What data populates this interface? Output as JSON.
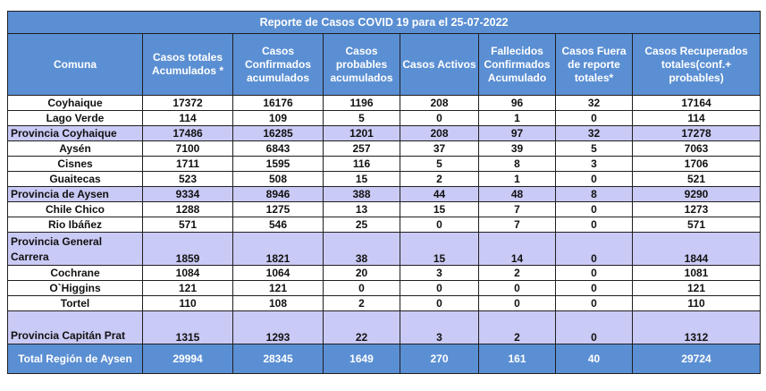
{
  "title": "Reporte de Casos COVID 19  para el  25-07-2022",
  "headers": [
    "Comuna",
    "Casos totales Acumulados *",
    "Casos Confirmados acumulados",
    "Casos probables acumulados",
    "Casos Activos",
    "Fallecidos Confirmados Acumulado",
    "Casos Fuera de reporte totales*",
    "Casos Recuperados totales(conf.+ probables)"
  ],
  "rows": [
    {
      "type": "comuna",
      "cells": [
        "Coyhaique",
        "17372",
        "16176",
        "1196",
        "208",
        "96",
        "32",
        "17164"
      ]
    },
    {
      "type": "comuna",
      "cells": [
        "Lago Verde",
        "114",
        "109",
        "5",
        "0",
        "1",
        "0",
        "114"
      ]
    },
    {
      "type": "provincia",
      "cells": [
        "Provincia Coyhaique",
        "17486",
        "16285",
        "1201",
        "208",
        "97",
        "32",
        "17278"
      ]
    },
    {
      "type": "comuna",
      "cells": [
        "Aysén",
        "7100",
        "6843",
        "257",
        "37",
        "39",
        "5",
        "7063"
      ]
    },
    {
      "type": "comuna",
      "cells": [
        "Cisnes",
        "1711",
        "1595",
        "116",
        "5",
        "8",
        "3",
        "1706"
      ]
    },
    {
      "type": "comuna",
      "cells": [
        "Guaitecas",
        "523",
        "508",
        "15",
        "2",
        "1",
        "0",
        "521"
      ]
    },
    {
      "type": "provincia",
      "cells": [
        "Provincia de Aysen",
        "9334",
        "8946",
        "388",
        "44",
        "48",
        "8",
        "9290"
      ]
    },
    {
      "type": "comuna",
      "cells": [
        "Chile Chico",
        "1288",
        "1275",
        "13",
        "15",
        "7",
        "0",
        "1273"
      ]
    },
    {
      "type": "comuna",
      "cells": [
        "Rio Ibáñez",
        "571",
        "546",
        "25",
        "0",
        "7",
        "0",
        "571"
      ]
    },
    {
      "type": "provincia-tall",
      "cells": [
        "Provincia General Carrera",
        "1859",
        "1821",
        "38",
        "15",
        "14",
        "0",
        "1844"
      ]
    },
    {
      "type": "comuna",
      "cells": [
        "Cochrane",
        "1084",
        "1064",
        "20",
        "3",
        "2",
        "0",
        "1081"
      ]
    },
    {
      "type": "comuna",
      "cells": [
        "O`Higgins",
        "121",
        "121",
        "0",
        "0",
        "0",
        "0",
        "121"
      ]
    },
    {
      "type": "comuna",
      "cells": [
        "Tortel",
        "110",
        "108",
        "2",
        "0",
        "0",
        "0",
        "110"
      ]
    },
    {
      "type": "provincia-tall",
      "cells": [
        "Provincia Capitán Prat",
        "1315",
        "1293",
        "22",
        "3",
        "2",
        "0",
        "1312"
      ]
    },
    {
      "type": "total",
      "cells": [
        "Total Región de Aysen",
        "29994",
        "28345",
        "1649",
        "270",
        "161",
        "40",
        "29724"
      ]
    }
  ]
}
